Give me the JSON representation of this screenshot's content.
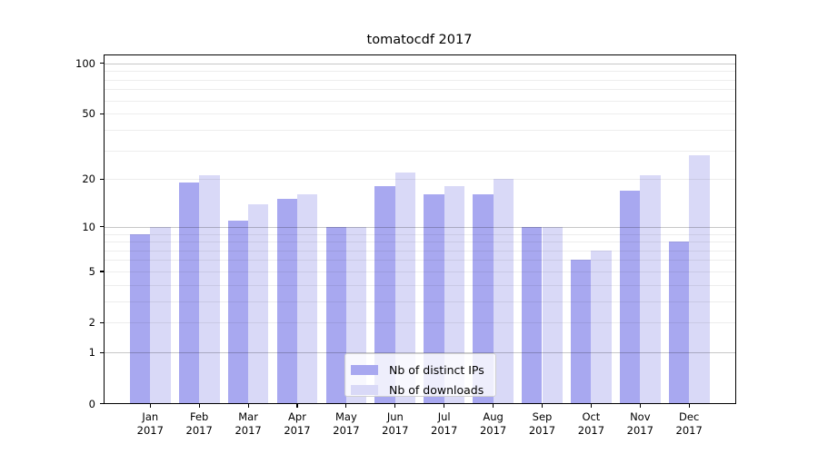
{
  "chart_data": {
    "type": "bar",
    "title": "tomatocdf 2017",
    "categories": [
      "Jan",
      "Feb",
      "Mar",
      "Apr",
      "May",
      "Jun",
      "Jul",
      "Aug",
      "Sep",
      "Oct",
      "Nov",
      "Dec"
    ],
    "x_year_label": "2017",
    "series": [
      {
        "name": "Nb of distinct IPs",
        "color": "#a8a8f0",
        "values": [
          9,
          19,
          11,
          15,
          10,
          18,
          16,
          16,
          10,
          6,
          17,
          8
        ]
      },
      {
        "name": "Nb of downloads",
        "color": "#d9d9f7",
        "values": [
          10,
          21,
          14,
          16,
          10,
          22,
          18,
          20,
          10,
          7,
          21,
          28
        ]
      }
    ],
    "yscale": "log1p",
    "ytick_labels": [
      0,
      1,
      2,
      5,
      10,
      20,
      50,
      100
    ],
    "major_gridlines": [
      1,
      10,
      100
    ],
    "minor_gridlines": [
      2,
      3,
      4,
      5,
      6,
      7,
      8,
      9,
      20,
      30,
      40,
      50,
      60,
      70,
      80,
      90
    ],
    "ylim": [
      0,
      111
    ],
    "grid": true,
    "legend_position": "lower center"
  }
}
